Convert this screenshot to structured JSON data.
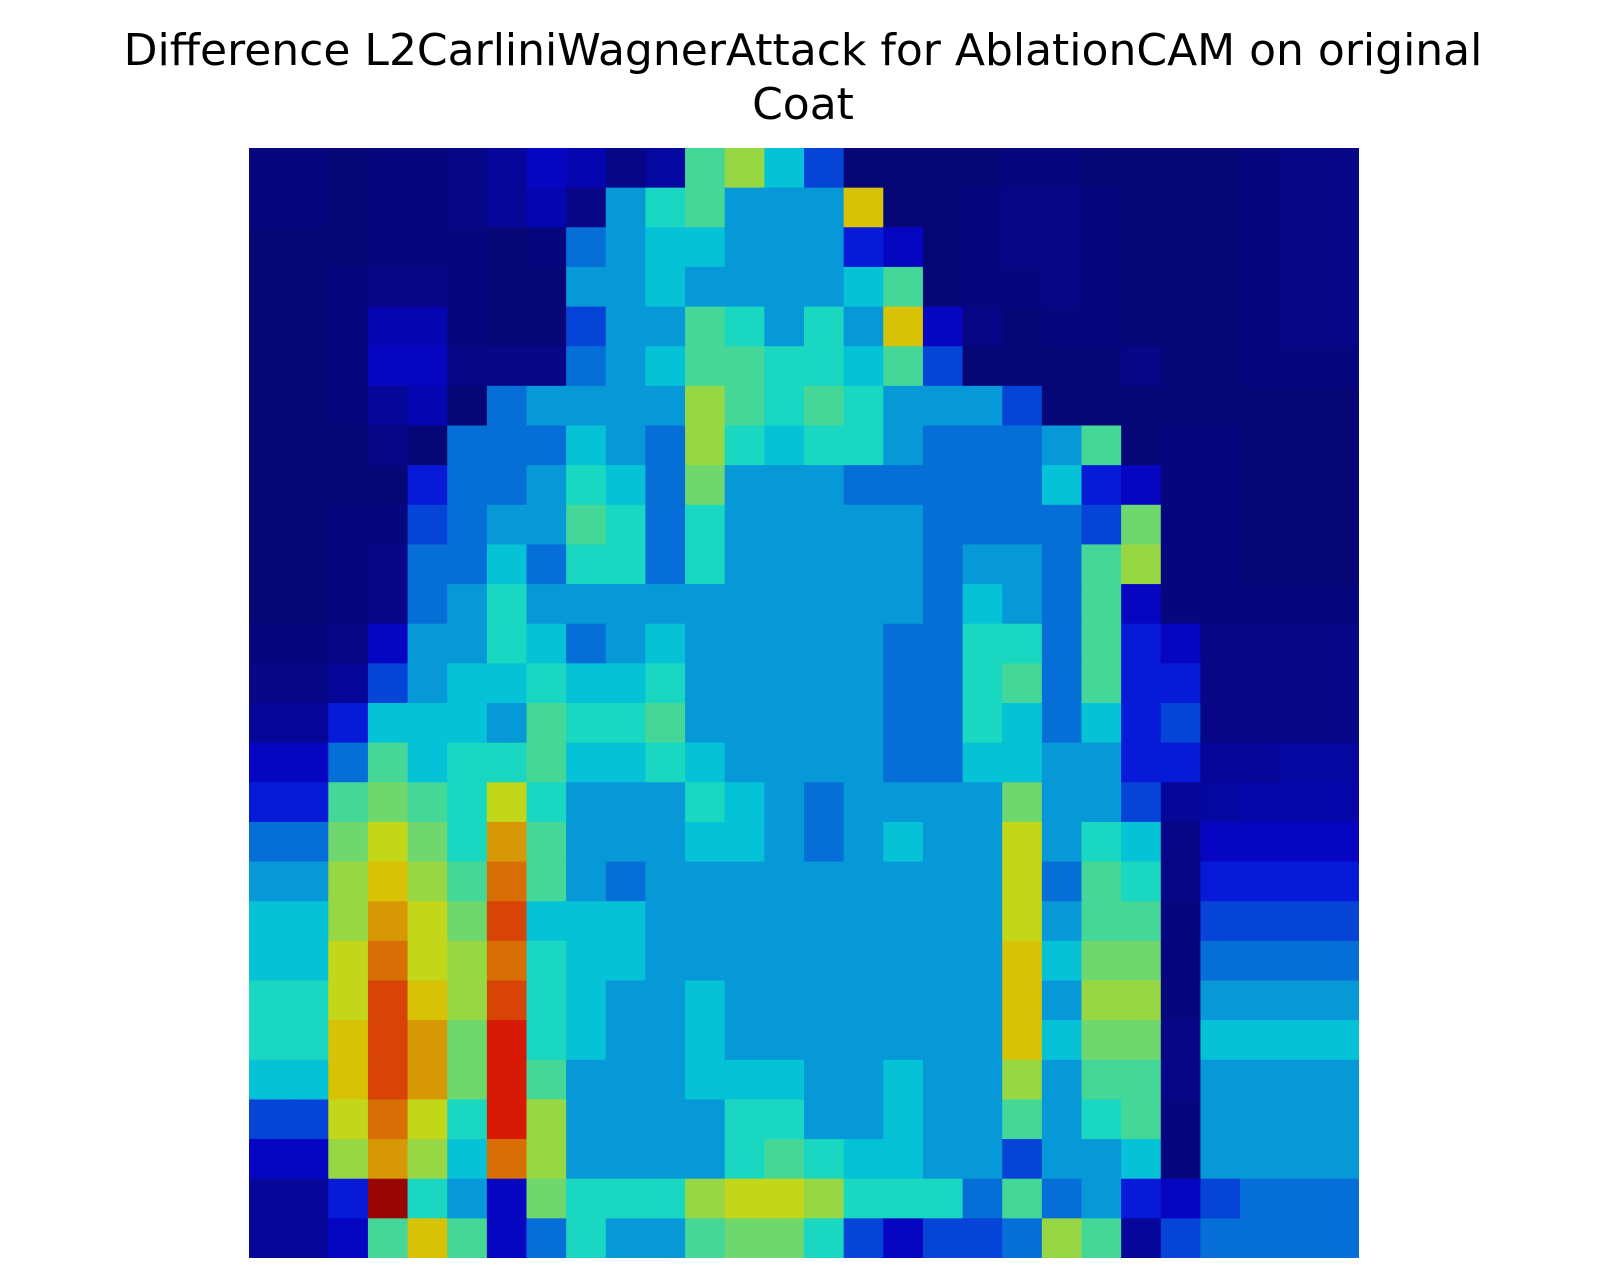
{
  "chart_data": {
    "type": "heatmap",
    "title_lines": [
      "Difference L2CarliniWagnerAttack for AblationCAM on original",
      "Coat"
    ],
    "xlabel": "",
    "ylabel": "",
    "axes": "off",
    "grid": false,
    "legend": "none",
    "rows": 28,
    "cols": 28,
    "colormap": "jet overlay on grayscale image",
    "values": [
      [
        0.02,
        0.02,
        0.01,
        0.02,
        0.02,
        0.03,
        0.05,
        0.1,
        0.08,
        0.03,
        0.06,
        0.45,
        0.55,
        0.35,
        0.2,
        0.01,
        0.01,
        0.01,
        0.01,
        0.02,
        0.02,
        0.01,
        0.01,
        0.01,
        0.01,
        0.02,
        0.03,
        0.03
      ],
      [
        0.02,
        0.02,
        0.01,
        0.02,
        0.02,
        0.03,
        0.05,
        0.08,
        0.03,
        0.3,
        0.4,
        0.45,
        0.3,
        0.3,
        0.3,
        0.65,
        0.01,
        0.01,
        0.02,
        0.03,
        0.03,
        0.02,
        0.01,
        0.01,
        0.01,
        0.02,
        0.03,
        0.03
      ],
      [
        0.01,
        0.01,
        0.01,
        0.02,
        0.02,
        0.02,
        0.01,
        0.02,
        0.25,
        0.3,
        0.35,
        0.35,
        0.3,
        0.3,
        0.3,
        0.15,
        0.1,
        0.01,
        0.02,
        0.03,
        0.03,
        0.02,
        0.01,
        0.01,
        0.01,
        0.02,
        0.03,
        0.03
      ],
      [
        0.01,
        0.01,
        0.02,
        0.03,
        0.03,
        0.02,
        0.01,
        0.01,
        0.3,
        0.3,
        0.35,
        0.3,
        0.3,
        0.3,
        0.3,
        0.35,
        0.45,
        0.01,
        0.02,
        0.02,
        0.03,
        0.02,
        0.01,
        0.01,
        0.01,
        0.02,
        0.03,
        0.03
      ],
      [
        0.01,
        0.01,
        0.02,
        0.08,
        0.08,
        0.02,
        0.01,
        0.01,
        0.2,
        0.3,
        0.3,
        0.45,
        0.4,
        0.3,
        0.4,
        0.3,
        0.65,
        0.1,
        0.03,
        0.01,
        0.02,
        0.02,
        0.01,
        0.01,
        0.01,
        0.02,
        0.03,
        0.03
      ],
      [
        0.01,
        0.01,
        0.02,
        0.1,
        0.1,
        0.03,
        0.03,
        0.03,
        0.25,
        0.3,
        0.35,
        0.45,
        0.45,
        0.4,
        0.4,
        0.35,
        0.45,
        0.2,
        0.01,
        0.01,
        0.01,
        0.01,
        0.03,
        0.01,
        0.01,
        0.02,
        0.02,
        0.02
      ],
      [
        0.01,
        0.01,
        0.02,
        0.05,
        0.08,
        0.01,
        0.25,
        0.3,
        0.3,
        0.3,
        0.3,
        0.55,
        0.45,
        0.4,
        0.45,
        0.4,
        0.3,
        0.3,
        0.3,
        0.2,
        0.01,
        0.01,
        0.01,
        0.01,
        0.01,
        0.01,
        0.01,
        0.01
      ],
      [
        0.01,
        0.01,
        0.01,
        0.03,
        0.01,
        0.25,
        0.25,
        0.25,
        0.35,
        0.3,
        0.25,
        0.55,
        0.4,
        0.35,
        0.4,
        0.4,
        0.3,
        0.25,
        0.25,
        0.25,
        0.3,
        0.45,
        0.01,
        0.02,
        0.02,
        0.01,
        0.01,
        0.01
      ],
      [
        0.01,
        0.01,
        0.01,
        0.01,
        0.15,
        0.25,
        0.25,
        0.3,
        0.4,
        0.35,
        0.25,
        0.5,
        0.3,
        0.3,
        0.3,
        0.25,
        0.25,
        0.25,
        0.25,
        0.25,
        0.35,
        0.15,
        0.1,
        0.02,
        0.02,
        0.01,
        0.01,
        0.01
      ],
      [
        0.01,
        0.01,
        0.02,
        0.02,
        0.2,
        0.25,
        0.3,
        0.3,
        0.45,
        0.4,
        0.25,
        0.4,
        0.3,
        0.3,
        0.3,
        0.3,
        0.3,
        0.25,
        0.25,
        0.25,
        0.25,
        0.2,
        0.5,
        0.02,
        0.02,
        0.01,
        0.01,
        0.01
      ],
      [
        0.01,
        0.01,
        0.02,
        0.03,
        0.25,
        0.25,
        0.35,
        0.25,
        0.4,
        0.4,
        0.25,
        0.4,
        0.3,
        0.3,
        0.3,
        0.3,
        0.3,
        0.25,
        0.3,
        0.3,
        0.25,
        0.45,
        0.55,
        0.02,
        0.02,
        0.01,
        0.01,
        0.01
      ],
      [
        0.01,
        0.01,
        0.02,
        0.03,
        0.25,
        0.3,
        0.4,
        0.3,
        0.3,
        0.3,
        0.3,
        0.3,
        0.3,
        0.3,
        0.3,
        0.3,
        0.3,
        0.25,
        0.35,
        0.3,
        0.25,
        0.45,
        0.1,
        0.02,
        0.02,
        0.02,
        0.02,
        0.02
      ],
      [
        0.02,
        0.02,
        0.03,
        0.1,
        0.3,
        0.3,
        0.4,
        0.35,
        0.25,
        0.3,
        0.35,
        0.3,
        0.3,
        0.3,
        0.3,
        0.3,
        0.25,
        0.25,
        0.4,
        0.4,
        0.25,
        0.45,
        0.15,
        0.1,
        0.03,
        0.03,
        0.03,
        0.03
      ],
      [
        0.03,
        0.03,
        0.05,
        0.2,
        0.3,
        0.35,
        0.35,
        0.4,
        0.35,
        0.35,
        0.4,
        0.3,
        0.3,
        0.3,
        0.3,
        0.3,
        0.25,
        0.25,
        0.4,
        0.45,
        0.25,
        0.45,
        0.15,
        0.15,
        0.03,
        0.03,
        0.03,
        0.03
      ],
      [
        0.05,
        0.05,
        0.15,
        0.35,
        0.35,
        0.35,
        0.3,
        0.45,
        0.4,
        0.4,
        0.45,
        0.3,
        0.3,
        0.3,
        0.3,
        0.3,
        0.25,
        0.25,
        0.4,
        0.35,
        0.25,
        0.35,
        0.15,
        0.2,
        0.03,
        0.03,
        0.03,
        0.03
      ],
      [
        0.1,
        0.1,
        0.25,
        0.45,
        0.35,
        0.4,
        0.4,
        0.45,
        0.35,
        0.35,
        0.4,
        0.35,
        0.3,
        0.3,
        0.3,
        0.3,
        0.25,
        0.25,
        0.35,
        0.35,
        0.3,
        0.3,
        0.15,
        0.15,
        0.05,
        0.05,
        0.06,
        0.06
      ],
      [
        0.15,
        0.15,
        0.45,
        0.5,
        0.45,
        0.4,
        0.6,
        0.4,
        0.3,
        0.3,
        0.3,
        0.4,
        0.35,
        0.3,
        0.25,
        0.3,
        0.3,
        0.3,
        0.3,
        0.5,
        0.3,
        0.3,
        0.2,
        0.05,
        0.06,
        0.07,
        0.07,
        0.07
      ],
      [
        0.25,
        0.25,
        0.5,
        0.6,
        0.5,
        0.4,
        0.7,
        0.45,
        0.3,
        0.3,
        0.3,
        0.35,
        0.35,
        0.3,
        0.25,
        0.3,
        0.35,
        0.3,
        0.3,
        0.6,
        0.3,
        0.4,
        0.35,
        0.03,
        0.1,
        0.1,
        0.1,
        0.1
      ],
      [
        0.3,
        0.3,
        0.55,
        0.65,
        0.55,
        0.45,
        0.75,
        0.45,
        0.3,
        0.25,
        0.3,
        0.3,
        0.3,
        0.3,
        0.3,
        0.3,
        0.3,
        0.3,
        0.3,
        0.6,
        0.25,
        0.45,
        0.4,
        0.03,
        0.15,
        0.15,
        0.15,
        0.15
      ],
      [
        0.35,
        0.35,
        0.55,
        0.7,
        0.6,
        0.5,
        0.8,
        0.35,
        0.35,
        0.35,
        0.3,
        0.3,
        0.3,
        0.3,
        0.3,
        0.3,
        0.3,
        0.3,
        0.3,
        0.6,
        0.3,
        0.45,
        0.45,
        0.02,
        0.2,
        0.2,
        0.2,
        0.2
      ],
      [
        0.35,
        0.35,
        0.6,
        0.75,
        0.6,
        0.55,
        0.75,
        0.4,
        0.35,
        0.35,
        0.3,
        0.3,
        0.3,
        0.3,
        0.3,
        0.3,
        0.3,
        0.3,
        0.3,
        0.65,
        0.35,
        0.5,
        0.5,
        0.02,
        0.25,
        0.25,
        0.25,
        0.25
      ],
      [
        0.4,
        0.4,
        0.6,
        0.8,
        0.65,
        0.55,
        0.8,
        0.4,
        0.35,
        0.3,
        0.3,
        0.35,
        0.3,
        0.3,
        0.3,
        0.3,
        0.3,
        0.3,
        0.3,
        0.65,
        0.3,
        0.55,
        0.55,
        0.02,
        0.3,
        0.3,
        0.3,
        0.3
      ],
      [
        0.4,
        0.4,
        0.65,
        0.8,
        0.7,
        0.5,
        0.85,
        0.4,
        0.35,
        0.3,
        0.3,
        0.35,
        0.3,
        0.3,
        0.3,
        0.3,
        0.3,
        0.3,
        0.3,
        0.65,
        0.35,
        0.5,
        0.5,
        0.03,
        0.35,
        0.35,
        0.35,
        0.35
      ],
      [
        0.35,
        0.35,
        0.65,
        0.8,
        0.7,
        0.5,
        0.85,
        0.45,
        0.3,
        0.3,
        0.3,
        0.35,
        0.35,
        0.35,
        0.3,
        0.3,
        0.35,
        0.3,
        0.3,
        0.55,
        0.3,
        0.45,
        0.45,
        0.03,
        0.3,
        0.3,
        0.3,
        0.3
      ],
      [
        0.2,
        0.2,
        0.6,
        0.75,
        0.6,
        0.4,
        0.85,
        0.55,
        0.3,
        0.3,
        0.3,
        0.3,
        0.4,
        0.4,
        0.3,
        0.3,
        0.35,
        0.3,
        0.3,
        0.45,
        0.3,
        0.4,
        0.45,
        0.02,
        0.3,
        0.3,
        0.3,
        0.3
      ],
      [
        0.1,
        0.1,
        0.55,
        0.7,
        0.55,
        0.35,
        0.75,
        0.55,
        0.3,
        0.3,
        0.3,
        0.3,
        0.4,
        0.45,
        0.4,
        0.35,
        0.35,
        0.3,
        0.3,
        0.2,
        0.3,
        0.3,
        0.35,
        0.02,
        0.3,
        0.3,
        0.3,
        0.3
      ],
      [
        0.05,
        0.05,
        0.15,
        0.95,
        0.4,
        0.3,
        0.1,
        0.5,
        0.4,
        0.4,
        0.4,
        0.55,
        0.6,
        0.6,
        0.55,
        0.4,
        0.4,
        0.4,
        0.25,
        0.45,
        0.25,
        0.3,
        0.15,
        0.1,
        0.2,
        0.25,
        0.25,
        0.25
      ],
      [
        0.05,
        0.05,
        0.1,
        0.45,
        0.65,
        0.45,
        0.1,
        0.25,
        0.4,
        0.3,
        0.3,
        0.45,
        0.5,
        0.5,
        0.4,
        0.2,
        0.1,
        0.2,
        0.2,
        0.25,
        0.55,
        0.45,
        0.05,
        0.2,
        0.25,
        0.25,
        0.25,
        0.25
      ]
    ]
  }
}
